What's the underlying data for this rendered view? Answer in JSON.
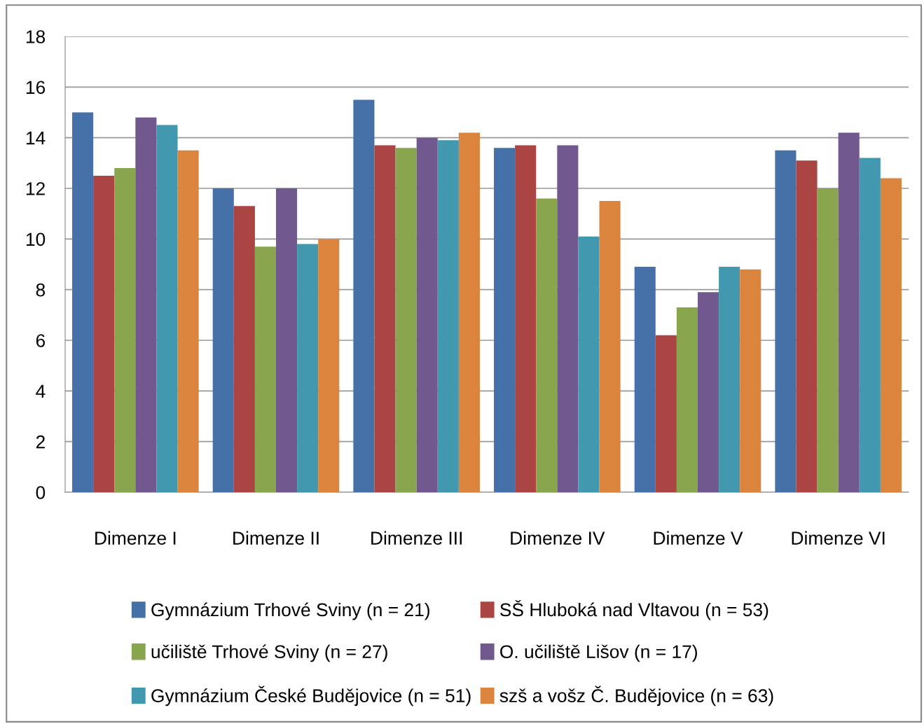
{
  "chart_data": {
    "type": "bar",
    "categories": [
      "Dimenze I",
      "Dimenze II",
      "Dimenze III",
      "Dimenze IV",
      "Dimenze V",
      "Dimenze VI"
    ],
    "series": [
      {
        "name": "Gymnázium Trhové Sviny (n = 21)",
        "color": "#4571a8",
        "values": [
          15.0,
          12.0,
          15.5,
          13.6,
          8.9,
          13.5
        ]
      },
      {
        "name": "SŠ Hluboká nad Vltavou (n = 53)",
        "color": "#aa4543",
        "values": [
          12.5,
          11.3,
          13.7,
          13.7,
          6.2,
          13.1
        ]
      },
      {
        "name": "učiliště Trhové Sviny (n = 27)",
        "color": "#89a54e",
        "values": [
          12.8,
          9.7,
          13.6,
          11.6,
          7.3,
          12.0
        ]
      },
      {
        "name": "O. učiliště Lišov (n = 17)",
        "color": "#71588f",
        "values": [
          14.8,
          12.0,
          14.0,
          13.7,
          7.9,
          14.2
        ]
      },
      {
        "name": "Gymnázium České Budějovice (n = 51)",
        "color": "#4198af",
        "values": [
          14.5,
          9.8,
          13.9,
          10.1,
          8.9,
          13.2
        ]
      },
      {
        "name": "szš a vošz Č. Budějovice (n = 63)",
        "color": "#db843d",
        "values": [
          13.5,
          10.0,
          14.2,
          11.5,
          8.8,
          12.4
        ]
      }
    ],
    "ylim": [
      0,
      18
    ],
    "yticks": [
      0,
      2,
      4,
      6,
      8,
      10,
      12,
      14,
      16,
      18
    ],
    "grid": "y",
    "legend": "bottom"
  }
}
